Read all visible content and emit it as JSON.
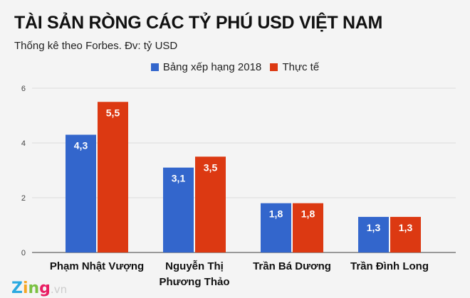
{
  "chart_data": {
    "type": "bar",
    "title": "TÀI SẢN RÒNG CÁC TỶ PHÚ USD VIỆT NAM",
    "subtitle": "Thống kê theo Forbes. Đv: tỷ USD",
    "categories": [
      [
        "Phạm Nhật Vượng"
      ],
      [
        "Nguyễn Thị",
        "Phương Thảo"
      ],
      [
        "Trần Bá Dương"
      ],
      [
        "Trần Đình Long"
      ]
    ],
    "series": [
      {
        "name": "Bảng xếp hạng 2018",
        "color": "#3366cc",
        "values": [
          4.3,
          3.1,
          1.8,
          1.3
        ],
        "labels": [
          "4,3",
          "3,1",
          "1,8",
          "1,3"
        ]
      },
      {
        "name": "Thực tế",
        "color": "#dc3912",
        "values": [
          5.5,
          3.5,
          1.8,
          1.3
        ],
        "labels": [
          "5,5",
          "3,5",
          "1,8",
          "1,3"
        ]
      }
    ],
    "yticks": [
      "0",
      "2",
      "4",
      "6"
    ],
    "ylim": [
      0,
      6
    ],
    "grid": true,
    "legend": "top-center"
  },
  "logo": {
    "brand": "Zing",
    "suffix": ".vn"
  }
}
